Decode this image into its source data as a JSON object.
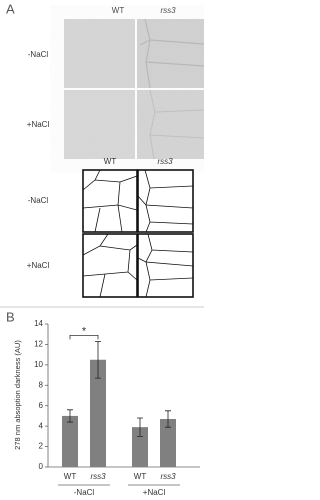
{
  "panel_a": {
    "label": "A",
    "photo": {
      "columns": [
        "WT",
        "rss3"
      ],
      "rows": [
        "-NaCl",
        "+NaCl"
      ]
    },
    "diagram": {
      "columns": [
        "WT",
        "rss3"
      ],
      "rows": [
        "-NaCl",
        "+NaCl"
      ]
    }
  },
  "chart_data": {
    "type": "bar",
    "panel_label": "B",
    "ylabel": "278 nm absoption darkness (AU)",
    "categories": [
      "WT",
      "rss3",
      "WT",
      "rss3"
    ],
    "groups": [
      "-NaCl",
      "+NaCl"
    ],
    "values": [
      5.0,
      10.5,
      3.9,
      4.7
    ],
    "errors": [
      0.6,
      1.8,
      0.9,
      0.8
    ],
    "color": "#808080",
    "ylim": [
      0,
      14
    ],
    "yticks": [
      0,
      2,
      4,
      6,
      8,
      10,
      12,
      14
    ],
    "annotation": "*"
  }
}
